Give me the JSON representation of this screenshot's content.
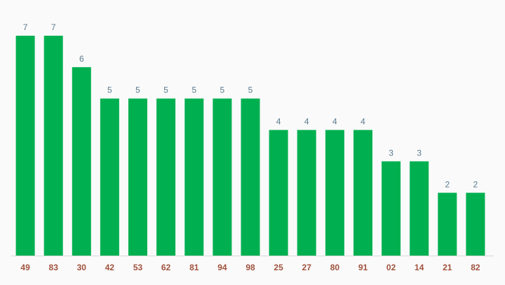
{
  "chart_data": {
    "type": "bar",
    "categories": [
      "49",
      "83",
      "30",
      "42",
      "53",
      "62",
      "81",
      "94",
      "98",
      "25",
      "27",
      "80",
      "91",
      "02",
      "14",
      "21",
      "82"
    ],
    "values": [
      7,
      7,
      6,
      5,
      5,
      5,
      5,
      5,
      5,
      4,
      4,
      4,
      4,
      3,
      3,
      2,
      2
    ],
    "ylim": [
      0,
      7
    ],
    "grid": false,
    "data_labels": true
  },
  "colors": {
    "background": "#fafafa",
    "bar": "#00b050",
    "value_label": "#5b7a8c",
    "category_label": "#a0523d",
    "baseline": "#d9d9d9"
  }
}
